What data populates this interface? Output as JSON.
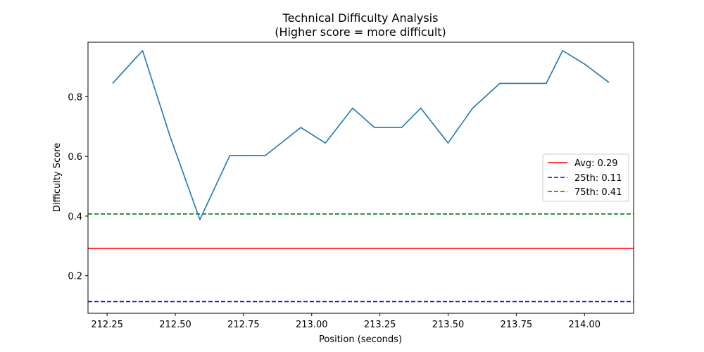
{
  "chart_data": {
    "type": "line",
    "title": "Technical Difficulty Analysis",
    "subtitle": "(Higher score = more difficult)",
    "xlabel": "Position (seconds)",
    "ylabel": "Difficulty Score",
    "xlim": [
      212.18,
      214.18
    ],
    "ylim": [
      0.074,
      0.983
    ],
    "xticks": [
      212.25,
      212.5,
      212.75,
      213.0,
      213.25,
      213.5,
      213.75,
      214.0
    ],
    "xtick_labels": [
      "212.25",
      "212.50",
      "212.75",
      "213.00",
      "213.25",
      "213.50",
      "213.75",
      "214.00"
    ],
    "yticks": [
      0.2,
      0.4,
      0.6,
      0.8
    ],
    "ytick_labels": [
      "0.2",
      "0.4",
      "0.6",
      "0.8"
    ],
    "grid": false,
    "legend_position": "center-right",
    "series": [
      {
        "color": "#1f77b4",
        "x": [
          212.27,
          212.38,
          212.48,
          212.59,
          212.7,
          212.83,
          212.96,
          213.05,
          213.15,
          213.23,
          213.33,
          213.4,
          213.5,
          213.59,
          213.69,
          213.78,
          213.86,
          213.92,
          214.0,
          214.09
        ],
        "y": [
          0.845,
          0.955,
          0.67,
          0.388,
          0.603,
          0.603,
          0.697,
          0.645,
          0.762,
          0.697,
          0.697,
          0.762,
          0.645,
          0.762,
          0.845,
          0.845,
          0.845,
          0.955,
          0.91,
          0.848
        ]
      }
    ],
    "reference_lines": [
      {
        "name": "Avg: 0.29",
        "y": 0.292,
        "color": "#ff0000",
        "style": "solid"
      },
      {
        "name": "25th: 0.11",
        "y": 0.113,
        "color": "#0000cd",
        "style": "dashed"
      },
      {
        "name": "75th: 0.41",
        "y": 0.407,
        "color": "#008000",
        "style": "dashed"
      }
    ]
  }
}
